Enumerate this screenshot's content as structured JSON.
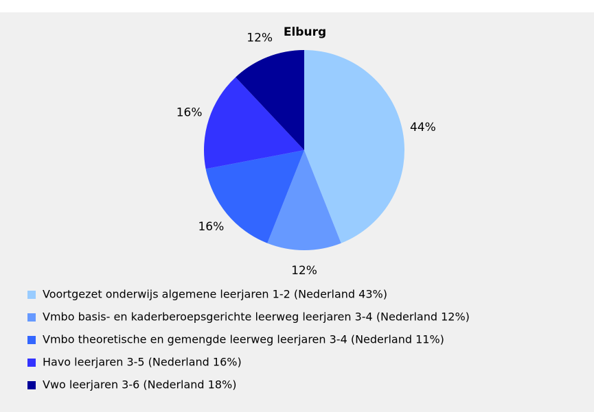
{
  "chart_data": {
    "type": "pie",
    "title": "Elburg",
    "categories": [
      "Voortgezet onderwijs algemene leerjaren 1-2 (Nederland 43%)",
      "Vmbo basis- en kaderberoepsgerichte leerweg leerjaren 3-4 (Nederland 12%)",
      "Vmbo theoretische en gemengde leerweg leerjaren 3-4 (Nederland 11%)",
      "Havo leerjaren 3-5 (Nederland 16%)",
      "Vwo leerjaren 3-6 (Nederland 18%)"
    ],
    "values": [
      44,
      12,
      16,
      16,
      12
    ],
    "value_labels": [
      "44%",
      "12%",
      "16%",
      "16%",
      "12%"
    ],
    "colors": [
      "#99ccff",
      "#6699ff",
      "#3366ff",
      "#3333ff",
      "#000099"
    ],
    "legend": "bottom"
  }
}
